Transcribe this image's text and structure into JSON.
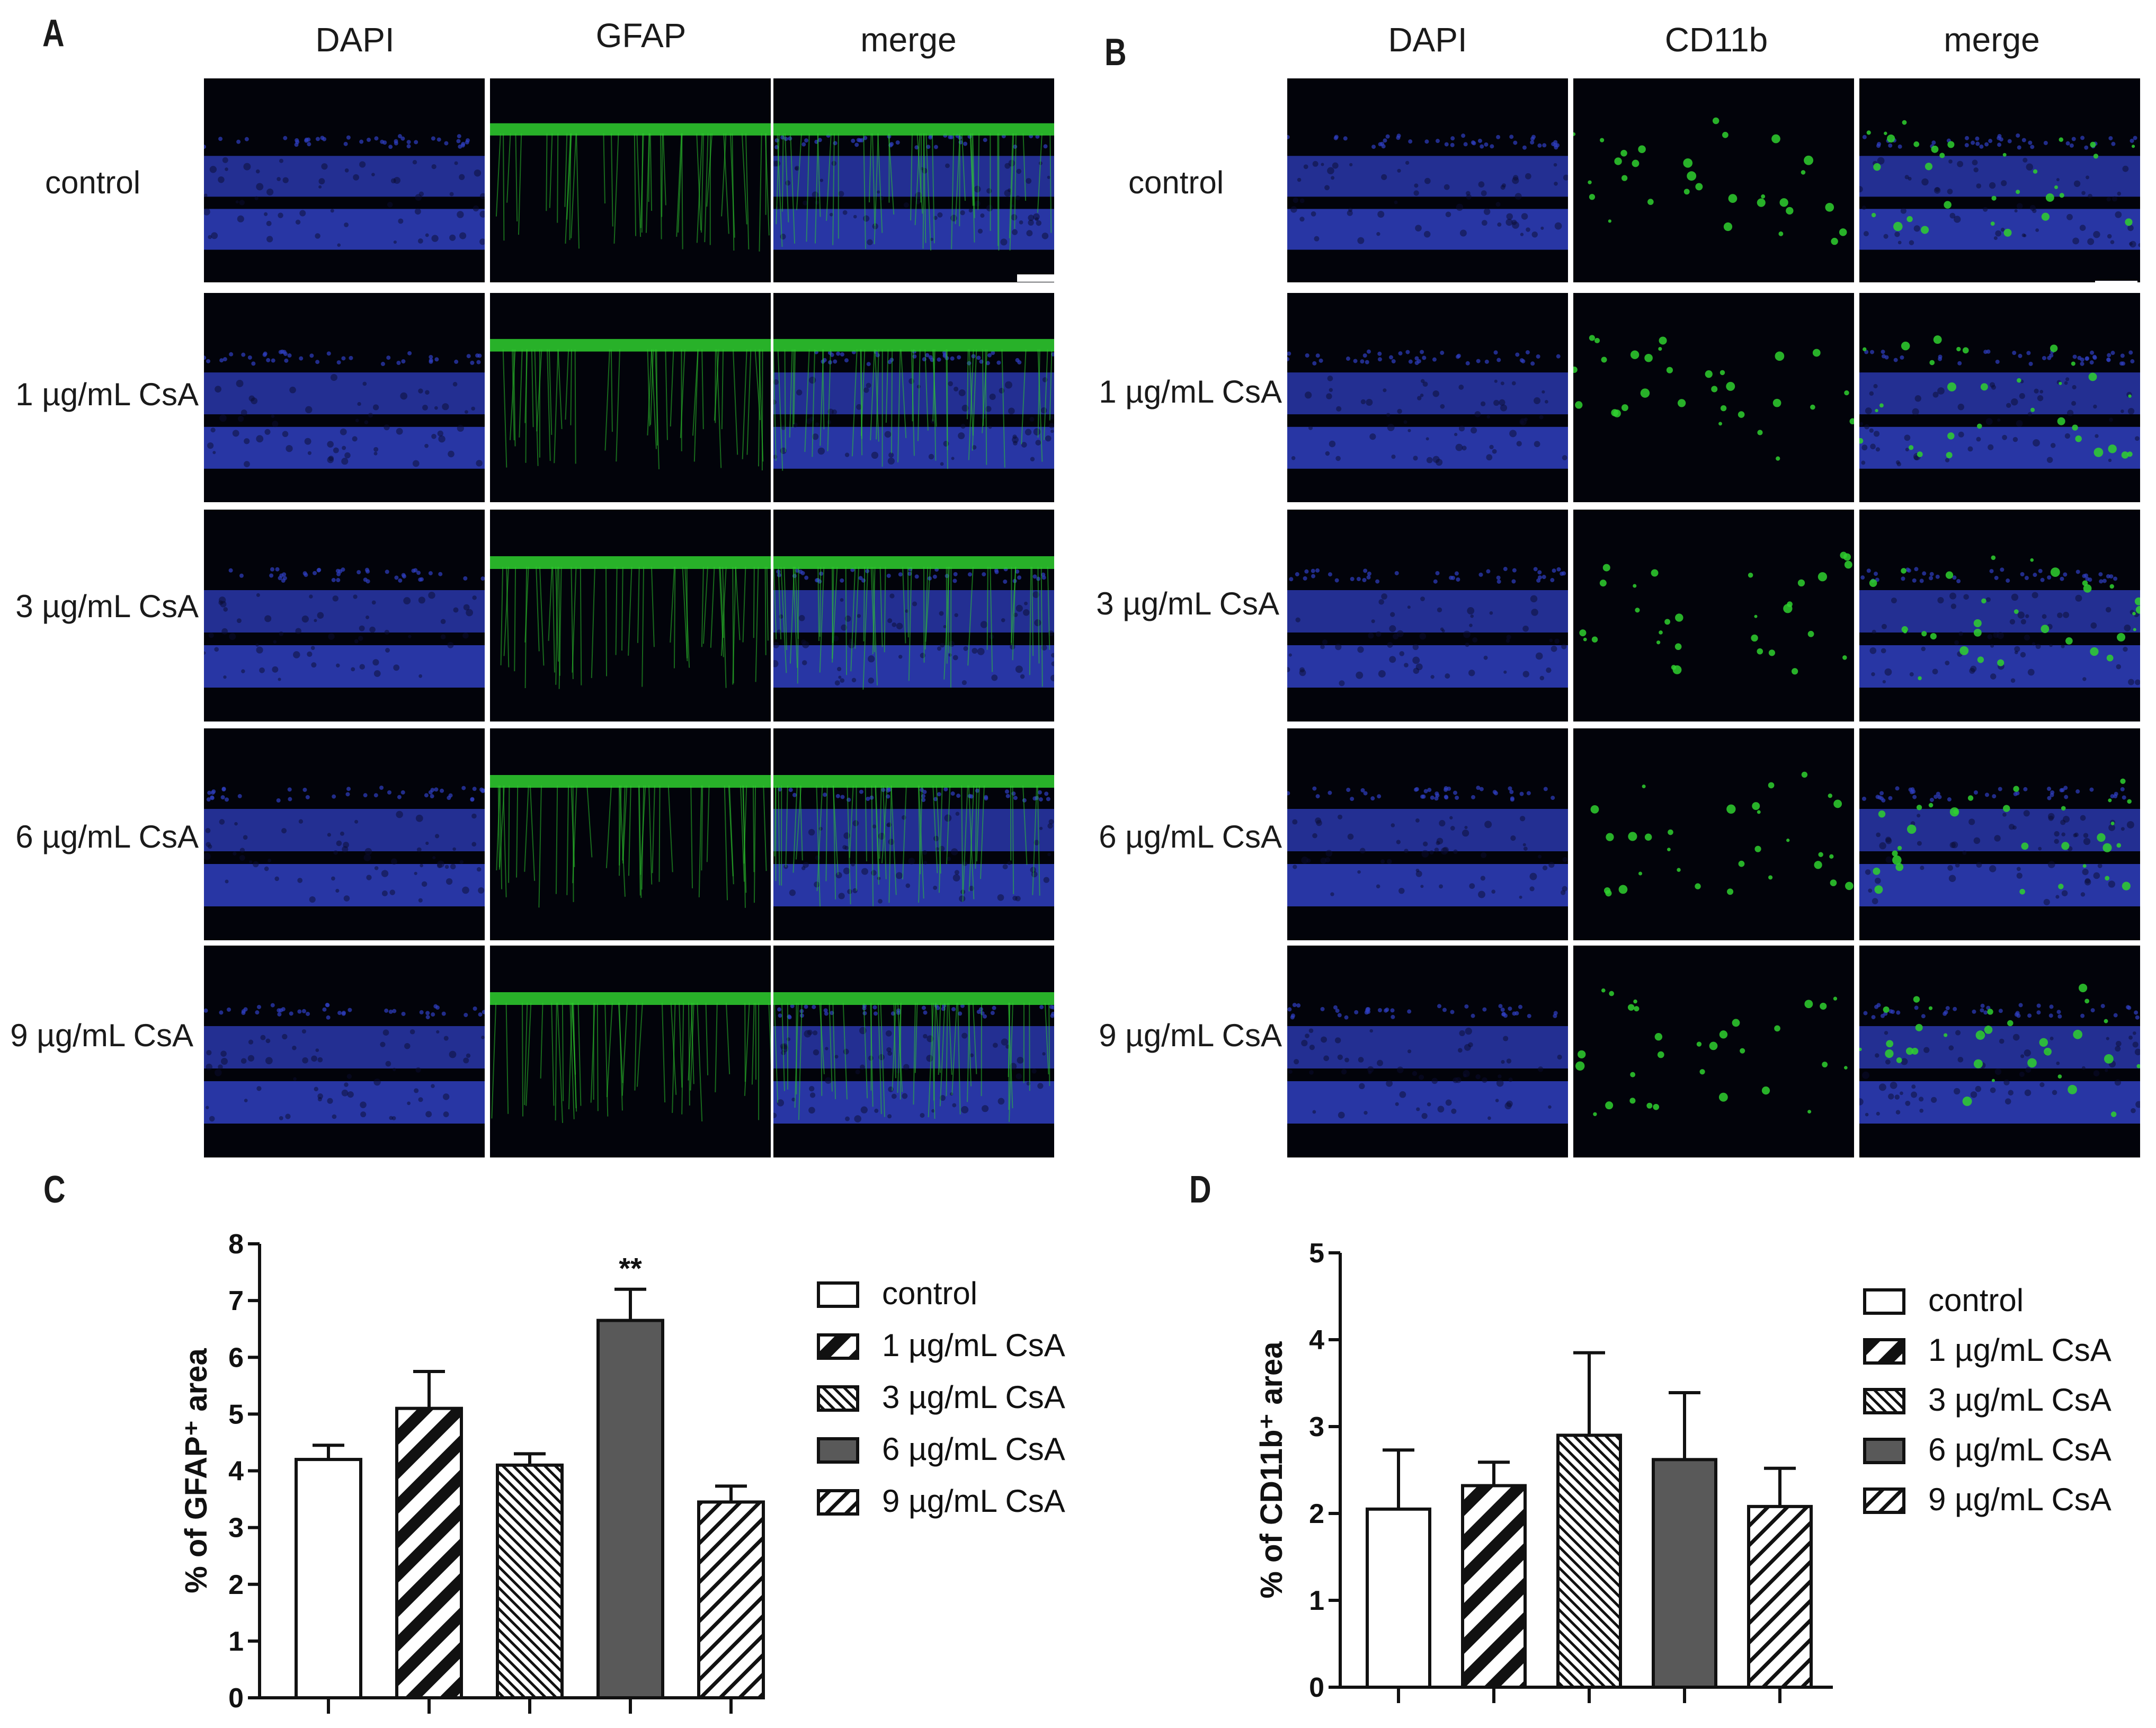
{
  "panels": {
    "A": {
      "letter": "A",
      "columns": [
        "DAPI",
        "GFAP",
        "merge"
      ],
      "rows": [
        "control",
        "1 µg/mL CsA",
        "3 µg/mL CsA",
        "6 µg/mL CsA",
        "9 µg/mL CsA"
      ]
    },
    "B": {
      "letter": "B",
      "columns": [
        "DAPI",
        "CD11b",
        "merge"
      ],
      "rows": [
        "control",
        "1 µg/mL CsA",
        "3 µg/mL CsA",
        "6 µg/mL CsA",
        "9 µg/mL CsA"
      ]
    },
    "C": {
      "letter": "C"
    },
    "D": {
      "letter": "D"
    }
  },
  "colors": {
    "dapi": "#2f3fc0",
    "marker": "#2fd02f",
    "background": "#02030a",
    "bar_dark": "#595959"
  },
  "chart_data": [
    {
      "type": "bar",
      "panel": "C",
      "categories": [
        "control",
        "1 µg/mL CsA",
        "3 µg/mL CsA",
        "6 µg/mL CsA",
        "9 µg/mL CsA"
      ],
      "values": [
        4.2,
        5.1,
        4.1,
        6.65,
        3.45
      ],
      "errors": [
        0.25,
        0.65,
        0.2,
        0.55,
        0.28
      ],
      "fills": [
        "white",
        "wide-diagonal",
        "fine-diagonal",
        "solid-gray",
        "hatch"
      ],
      "annotations": [
        {
          "category": "6 µg/mL CsA",
          "text": "**"
        }
      ],
      "ylabel": "% of GFAP⁺ area",
      "ylim": [
        0,
        8
      ],
      "yticks": [
        0,
        1,
        2,
        3,
        4,
        5,
        6,
        7,
        8
      ],
      "legend": [
        "control",
        "1 µg/mL CsA",
        "3 µg/mL CsA",
        "6 µg/mL CsA",
        "9 µg/mL CsA"
      ],
      "legend_position": "right",
      "grid": false
    },
    {
      "type": "bar",
      "panel": "D",
      "categories": [
        "control",
        "1 µg/mL CsA",
        "3 µg/mL CsA",
        "6 µg/mL CsA",
        "9 µg/mL CsA"
      ],
      "values": [
        2.05,
        2.32,
        2.9,
        2.62,
        2.08
      ],
      "errors": [
        0.68,
        0.27,
        0.95,
        0.77,
        0.44
      ],
      "fills": [
        "white",
        "wide-diagonal",
        "fine-diagonal",
        "solid-gray",
        "hatch"
      ],
      "annotations": [],
      "ylabel": "% of CD11b⁺ area",
      "ylim": [
        0,
        5
      ],
      "yticks": [
        0,
        1,
        2,
        3,
        4,
        5
      ],
      "legend": [
        "control",
        "1 µg/mL CsA",
        "3 µg/mL CsA",
        "6 µg/mL CsA",
        "9 µg/mL CsA"
      ],
      "legend_position": "right",
      "grid": false
    }
  ]
}
